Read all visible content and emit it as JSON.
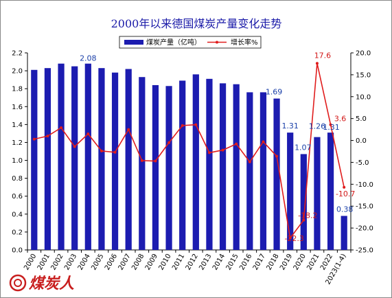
{
  "chart_data": {
    "type": "bar",
    "title": "2000年以来德国煤炭产量变化走势",
    "categories": [
      "2000",
      "2001",
      "2002",
      "2003",
      "2004",
      "2005",
      "2006",
      "2007",
      "2008",
      "2009",
      "2010",
      "2011",
      "2012",
      "2013",
      "2014",
      "2015",
      "2016",
      "2017",
      "2018",
      "2019",
      "2020",
      "2021",
      "2022",
      "2023(1-4)"
    ],
    "series": [
      {
        "name": "煤炭产量（亿吨）",
        "type": "bar",
        "axis": "left",
        "color": "#1c1cb0",
        "values": [
          2.01,
          2.03,
          2.08,
          2.05,
          2.08,
          2.03,
          1.98,
          2.02,
          1.93,
          1.84,
          1.83,
          1.89,
          1.96,
          1.91,
          1.86,
          1.85,
          1.76,
          1.76,
          1.69,
          1.31,
          1.07,
          1.26,
          1.31,
          0.38
        ]
      },
      {
        "name": "增长率%",
        "type": "line",
        "axis": "right",
        "color": "#e01c1c",
        "values": [
          0.3,
          1.0,
          2.9,
          -1.4,
          1.5,
          -2.4,
          -2.7,
          2.5,
          -4.6,
          -4.7,
          -0.5,
          3.4,
          3.6,
          -2.8,
          -2.2,
          -0.8,
          -4.9,
          -0.3,
          -3.6,
          -22.3,
          -18.2,
          17.6,
          3.6,
          -10.7
        ]
      }
    ],
    "bar_labels": [
      {
        "index": 4,
        "text": "2.08"
      },
      {
        "index": 18,
        "text": "1.69"
      },
      {
        "index": 19,
        "text": "1.31"
      },
      {
        "index": 20,
        "text": "1.07"
      },
      {
        "index": 21,
        "text": "1.26"
      },
      {
        "index": 22,
        "text": "1.31"
      },
      {
        "index": 23,
        "text": "0.38"
      }
    ],
    "rate_labels": [
      {
        "index": 19,
        "text": "-22.3"
      },
      {
        "index": 20,
        "text": "-18.2"
      },
      {
        "index": 21,
        "text": "17.6"
      },
      {
        "index": 22,
        "text": "3.6"
      },
      {
        "index": 23,
        "text": "-10.7"
      }
    ],
    "ylim_left": [
      0,
      2.2
    ],
    "yticks_left": [
      "0.0",
      "0.2",
      "0.4",
      "0.6",
      "0.8",
      "1.0",
      "1.2",
      "1.4",
      "1.6",
      "1.8",
      "2.0",
      "2.2"
    ],
    "ylim_right": [
      -25,
      20
    ],
    "yticks_right": [
      "-25.0",
      "-20.0",
      "-15.0",
      "-10.0",
      "-5.0",
      "0.0",
      "5.0",
      "10.0",
      "15.0",
      "20.0"
    ],
    "grid": false,
    "legend_position": "top-center"
  },
  "watermark": {
    "text": "煤炭人",
    "color": "#c81e1e"
  }
}
